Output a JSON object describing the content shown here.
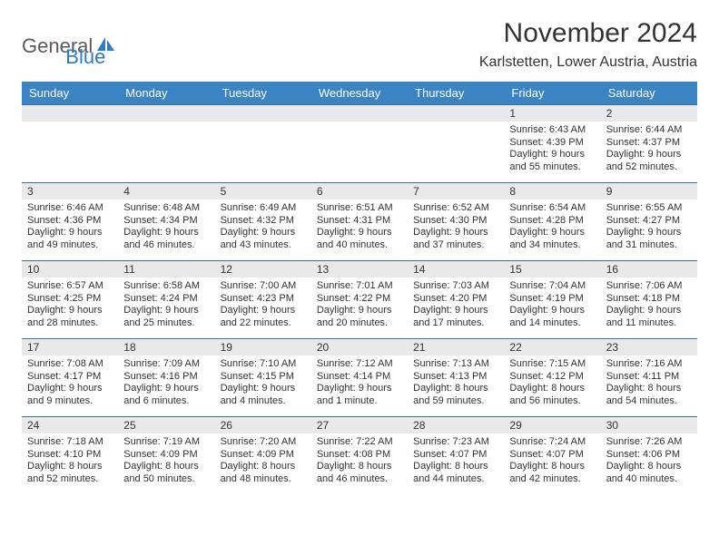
{
  "logo": {
    "word1": "General",
    "word2": "Blue"
  },
  "title": "November 2024",
  "location": "Karlstetten, Lower Austria, Austria",
  "colors": {
    "header_bg": "#3b84c4",
    "header_fg": "#ffffff",
    "daynum_bg": "#e9e9e9",
    "row_border": "#3b6fa0",
    "text": "#333333",
    "logo_gray": "#5a5a5a",
    "logo_blue": "#2f7bbf"
  },
  "weekdays": [
    "Sunday",
    "Monday",
    "Tuesday",
    "Wednesday",
    "Thursday",
    "Friday",
    "Saturday"
  ],
  "weeks": [
    [
      {
        "n": "",
        "lines": []
      },
      {
        "n": "",
        "lines": []
      },
      {
        "n": "",
        "lines": []
      },
      {
        "n": "",
        "lines": []
      },
      {
        "n": "",
        "lines": []
      },
      {
        "n": "1",
        "lines": [
          "Sunrise: 6:43 AM",
          "Sunset: 4:39 PM",
          "Daylight: 9 hours and 55 minutes."
        ]
      },
      {
        "n": "2",
        "lines": [
          "Sunrise: 6:44 AM",
          "Sunset: 4:37 PM",
          "Daylight: 9 hours and 52 minutes."
        ]
      }
    ],
    [
      {
        "n": "3",
        "lines": [
          "Sunrise: 6:46 AM",
          "Sunset: 4:36 PM",
          "Daylight: 9 hours and 49 minutes."
        ]
      },
      {
        "n": "4",
        "lines": [
          "Sunrise: 6:48 AM",
          "Sunset: 4:34 PM",
          "Daylight: 9 hours and 46 minutes."
        ]
      },
      {
        "n": "5",
        "lines": [
          "Sunrise: 6:49 AM",
          "Sunset: 4:32 PM",
          "Daylight: 9 hours and 43 minutes."
        ]
      },
      {
        "n": "6",
        "lines": [
          "Sunrise: 6:51 AM",
          "Sunset: 4:31 PM",
          "Daylight: 9 hours and 40 minutes."
        ]
      },
      {
        "n": "7",
        "lines": [
          "Sunrise: 6:52 AM",
          "Sunset: 4:30 PM",
          "Daylight: 9 hours and 37 minutes."
        ]
      },
      {
        "n": "8",
        "lines": [
          "Sunrise: 6:54 AM",
          "Sunset: 4:28 PM",
          "Daylight: 9 hours and 34 minutes."
        ]
      },
      {
        "n": "9",
        "lines": [
          "Sunrise: 6:55 AM",
          "Sunset: 4:27 PM",
          "Daylight: 9 hours and 31 minutes."
        ]
      }
    ],
    [
      {
        "n": "10",
        "lines": [
          "Sunrise: 6:57 AM",
          "Sunset: 4:25 PM",
          "Daylight: 9 hours and 28 minutes."
        ]
      },
      {
        "n": "11",
        "lines": [
          "Sunrise: 6:58 AM",
          "Sunset: 4:24 PM",
          "Daylight: 9 hours and 25 minutes."
        ]
      },
      {
        "n": "12",
        "lines": [
          "Sunrise: 7:00 AM",
          "Sunset: 4:23 PM",
          "Daylight: 9 hours and 22 minutes."
        ]
      },
      {
        "n": "13",
        "lines": [
          "Sunrise: 7:01 AM",
          "Sunset: 4:22 PM",
          "Daylight: 9 hours and 20 minutes."
        ]
      },
      {
        "n": "14",
        "lines": [
          "Sunrise: 7:03 AM",
          "Sunset: 4:20 PM",
          "Daylight: 9 hours and 17 minutes."
        ]
      },
      {
        "n": "15",
        "lines": [
          "Sunrise: 7:04 AM",
          "Sunset: 4:19 PM",
          "Daylight: 9 hours and 14 minutes."
        ]
      },
      {
        "n": "16",
        "lines": [
          "Sunrise: 7:06 AM",
          "Sunset: 4:18 PM",
          "Daylight: 9 hours and 11 minutes."
        ]
      }
    ],
    [
      {
        "n": "17",
        "lines": [
          "Sunrise: 7:08 AM",
          "Sunset: 4:17 PM",
          "Daylight: 9 hours and 9 minutes."
        ]
      },
      {
        "n": "18",
        "lines": [
          "Sunrise: 7:09 AM",
          "Sunset: 4:16 PM",
          "Daylight: 9 hours and 6 minutes."
        ]
      },
      {
        "n": "19",
        "lines": [
          "Sunrise: 7:10 AM",
          "Sunset: 4:15 PM",
          "Daylight: 9 hours and 4 minutes."
        ]
      },
      {
        "n": "20",
        "lines": [
          "Sunrise: 7:12 AM",
          "Sunset: 4:14 PM",
          "Daylight: 9 hours and 1 minute."
        ]
      },
      {
        "n": "21",
        "lines": [
          "Sunrise: 7:13 AM",
          "Sunset: 4:13 PM",
          "Daylight: 8 hours and 59 minutes."
        ]
      },
      {
        "n": "22",
        "lines": [
          "Sunrise: 7:15 AM",
          "Sunset: 4:12 PM",
          "Daylight: 8 hours and 56 minutes."
        ]
      },
      {
        "n": "23",
        "lines": [
          "Sunrise: 7:16 AM",
          "Sunset: 4:11 PM",
          "Daylight: 8 hours and 54 minutes."
        ]
      }
    ],
    [
      {
        "n": "24",
        "lines": [
          "Sunrise: 7:18 AM",
          "Sunset: 4:10 PM",
          "Daylight: 8 hours and 52 minutes."
        ]
      },
      {
        "n": "25",
        "lines": [
          "Sunrise: 7:19 AM",
          "Sunset: 4:09 PM",
          "Daylight: 8 hours and 50 minutes."
        ]
      },
      {
        "n": "26",
        "lines": [
          "Sunrise: 7:20 AM",
          "Sunset: 4:09 PM",
          "Daylight: 8 hours and 48 minutes."
        ]
      },
      {
        "n": "27",
        "lines": [
          "Sunrise: 7:22 AM",
          "Sunset: 4:08 PM",
          "Daylight: 8 hours and 46 minutes."
        ]
      },
      {
        "n": "28",
        "lines": [
          "Sunrise: 7:23 AM",
          "Sunset: 4:07 PM",
          "Daylight: 8 hours and 44 minutes."
        ]
      },
      {
        "n": "29",
        "lines": [
          "Sunrise: 7:24 AM",
          "Sunset: 4:07 PM",
          "Daylight: 8 hours and 42 minutes."
        ]
      },
      {
        "n": "30",
        "lines": [
          "Sunrise: 7:26 AM",
          "Sunset: 4:06 PM",
          "Daylight: 8 hours and 40 minutes."
        ]
      }
    ]
  ]
}
